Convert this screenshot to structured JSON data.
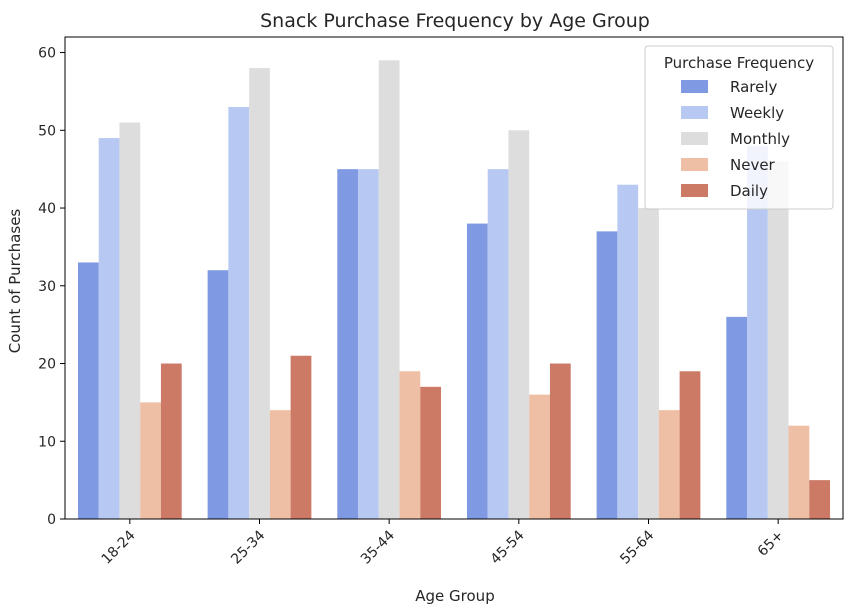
{
  "chart_data": {
    "type": "bar",
    "title": "Snack Purchase Frequency by Age Group",
    "xlabel": "Age Group",
    "ylabel": "Count of Purchases",
    "ylim": [
      0,
      62
    ],
    "yticks": [
      0,
      10,
      20,
      30,
      40,
      50,
      60
    ],
    "categories": [
      "18-24",
      "25-34",
      "35-44",
      "45-54",
      "55-64",
      "65+"
    ],
    "legend": {
      "title": "Purchase Frequency",
      "placement": "top-right"
    },
    "grid": false,
    "series": [
      {
        "name": "Rarely",
        "color": "#7f99e2",
        "values": [
          33,
          32,
          45,
          38,
          37,
          26
        ]
      },
      {
        "name": "Weekly",
        "color": "#b7c9f2",
        "values": [
          49,
          53,
          45,
          45,
          43,
          48
        ]
      },
      {
        "name": "Monthly",
        "color": "#dddddd",
        "values": [
          51,
          58,
          59,
          50,
          40,
          46
        ]
      },
      {
        "name": "Never",
        "color": "#eebea5",
        "values": [
          15,
          14,
          19,
          16,
          14,
          12
        ]
      },
      {
        "name": "Daily",
        "color": "#cc7966",
        "values": [
          20,
          21,
          17,
          20,
          19,
          5
        ]
      }
    ]
  }
}
